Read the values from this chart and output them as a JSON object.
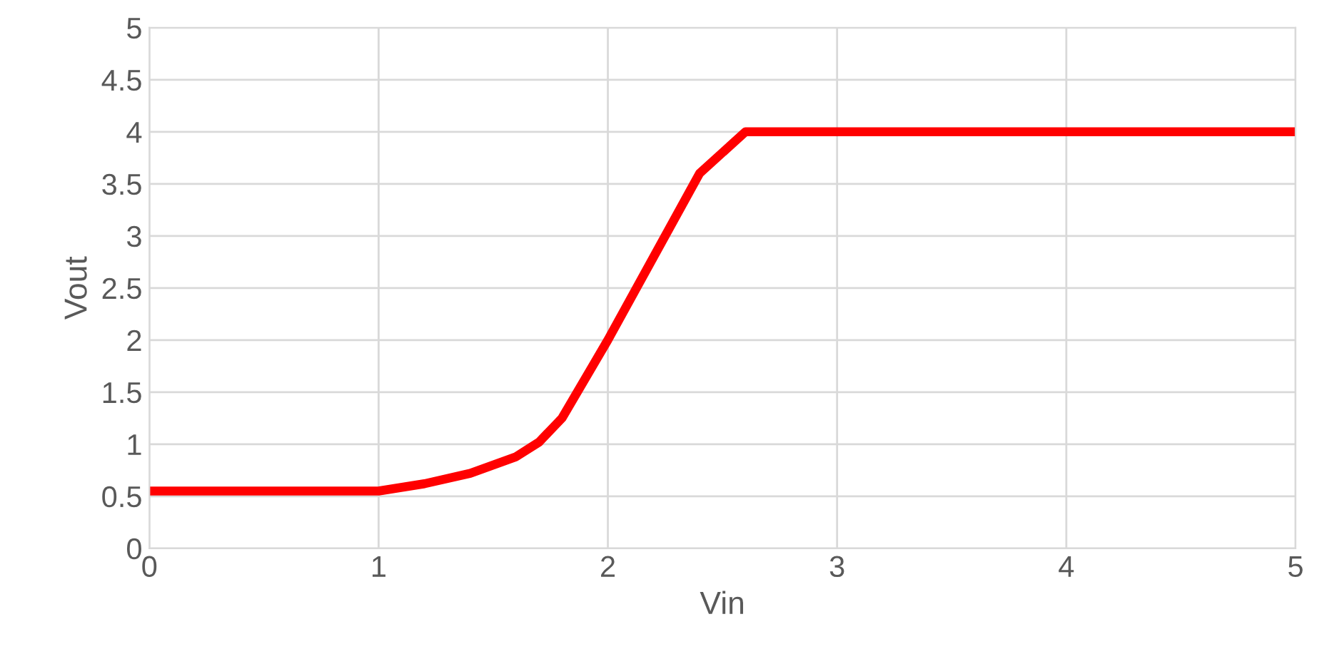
{
  "chart_data": {
    "type": "line",
    "xlabel": "Vin",
    "ylabel": "Vout",
    "x": [
      0,
      1,
      1.2,
      1.4,
      1.6,
      1.7,
      1.8,
      2.0,
      2.2,
      2.4,
      2.6,
      5
    ],
    "series": [
      {
        "color": "#ff0000",
        "values": [
          0.55,
          0.55,
          0.62,
          0.72,
          0.88,
          1.02,
          1.25,
          2.0,
          2.8,
          3.6,
          4.0,
          4.0
        ]
      }
    ],
    "xlim": [
      0,
      5
    ],
    "xticks": [
      0,
      1,
      2,
      3,
      4,
      5
    ],
    "ylim": [
      0,
      5
    ],
    "yticks": [
      0,
      0.5,
      1,
      1.5,
      2,
      2.5,
      3,
      3.5,
      4,
      4.5,
      5
    ],
    "grid": true,
    "legend": false,
    "marker": "none",
    "line_style": "solid"
  }
}
